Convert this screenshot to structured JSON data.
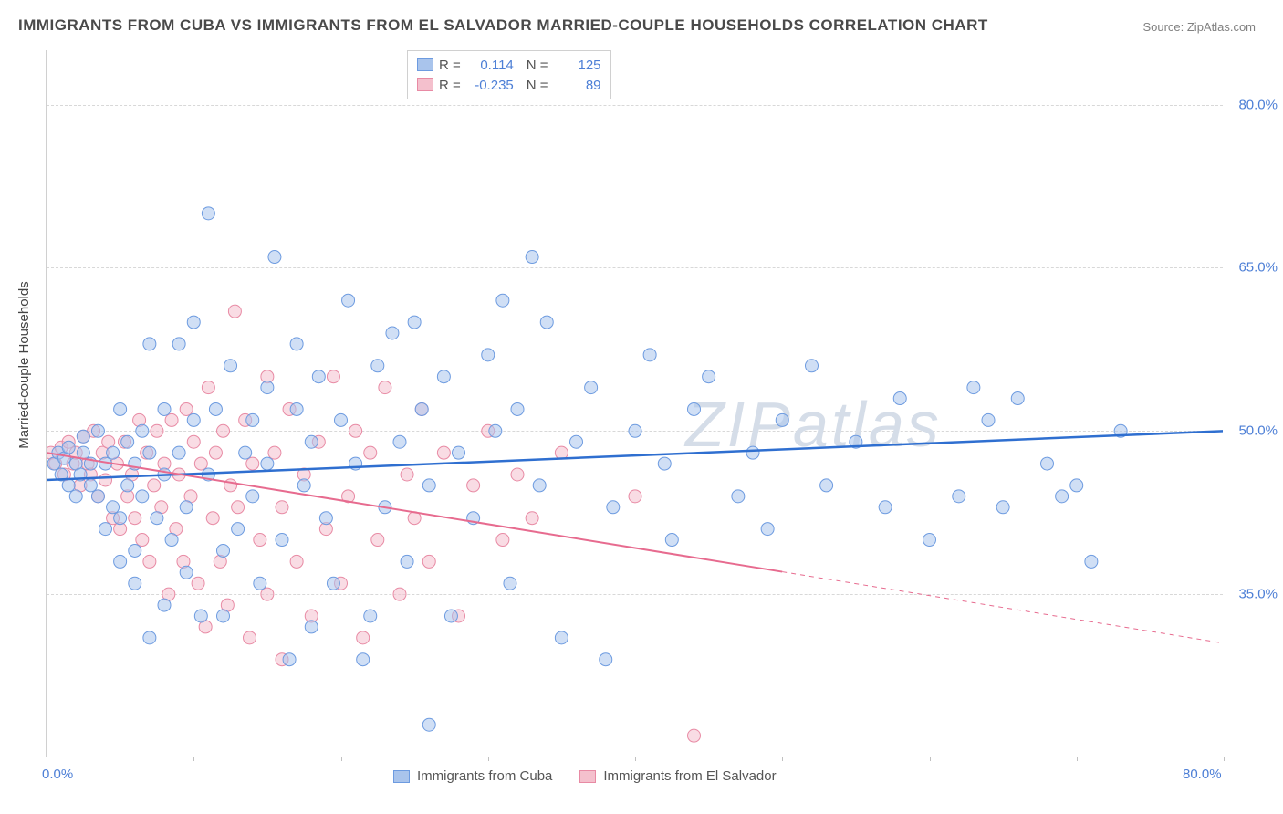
{
  "title": "IMMIGRANTS FROM CUBA VS IMMIGRANTS FROM EL SALVADOR MARRIED-COUPLE HOUSEHOLDS CORRELATION CHART",
  "source": "Source: ZipAtlas.com",
  "watermark": "ZIPatlas",
  "y_axis_title": "Married-couple Households",
  "chart": {
    "type": "scatter",
    "xlim": [
      0,
      80
    ],
    "ylim": [
      20,
      85
    ],
    "x_ticks": [
      0,
      10,
      20,
      30,
      40,
      50,
      60,
      70,
      80
    ],
    "x_tick_labels": {
      "0": "0.0%",
      "80": "80.0%"
    },
    "y_ticks": [
      35,
      50,
      65,
      80
    ],
    "y_tick_labels": {
      "35": "35.0%",
      "50": "50.0%",
      "65": "65.0%",
      "80": "80.0%"
    },
    "grid_color": "#d8d8d8",
    "background_color": "#ffffff",
    "axis_label_color": "#4d7fd6",
    "marker_radius": 7,
    "marker_opacity": 0.55,
    "series": [
      {
        "name": "Immigrants from Cuba",
        "color_fill": "#a9c4ec",
        "color_stroke": "#6d9be0",
        "trend_color": "#2f6fd0",
        "trend_width": 2.5,
        "R": "0.114",
        "N": "125",
        "trend": {
          "x1": 0,
          "y1": 45.5,
          "x2": 80,
          "y2": 50.0,
          "solid_until_x": 80
        },
        "points": [
          [
            0.5,
            47
          ],
          [
            0.8,
            48
          ],
          [
            1,
            46
          ],
          [
            1.2,
            47.5
          ],
          [
            1.5,
            45
          ],
          [
            1.5,
            48.5
          ],
          [
            2,
            47
          ],
          [
            2,
            44
          ],
          [
            2.3,
            46
          ],
          [
            2.5,
            48
          ],
          [
            2.5,
            49.5
          ],
          [
            3,
            45
          ],
          [
            3,
            47
          ],
          [
            3.5,
            44
          ],
          [
            3.5,
            50
          ],
          [
            4,
            41
          ],
          [
            4,
            47
          ],
          [
            4.5,
            43
          ],
          [
            4.5,
            48
          ],
          [
            5,
            42
          ],
          [
            5,
            38
          ],
          [
            5,
            52
          ],
          [
            5.5,
            45
          ],
          [
            5.5,
            49
          ],
          [
            6,
            39
          ],
          [
            6,
            47
          ],
          [
            6,
            36
          ],
          [
            6.5,
            50
          ],
          [
            6.5,
            44
          ],
          [
            7,
            31
          ],
          [
            7,
            48
          ],
          [
            7,
            58
          ],
          [
            7.5,
            42
          ],
          [
            8,
            34
          ],
          [
            8,
            46
          ],
          [
            8,
            52
          ],
          [
            8.5,
            40
          ],
          [
            9,
            48
          ],
          [
            9,
            58
          ],
          [
            9.5,
            43
          ],
          [
            9.5,
            37
          ],
          [
            10,
            51
          ],
          [
            10,
            60
          ],
          [
            10.5,
            33
          ],
          [
            11,
            46
          ],
          [
            11,
            70
          ],
          [
            11.5,
            52
          ],
          [
            12,
            39
          ],
          [
            12,
            33
          ],
          [
            12.5,
            56
          ],
          [
            13,
            41
          ],
          [
            13.5,
            48
          ],
          [
            14,
            51
          ],
          [
            14,
            44
          ],
          [
            14.5,
            36
          ],
          [
            15,
            54
          ],
          [
            15,
            47
          ],
          [
            15.5,
            66
          ],
          [
            16,
            40
          ],
          [
            16.5,
            29
          ],
          [
            17,
            52
          ],
          [
            17,
            58
          ],
          [
            17.5,
            45
          ],
          [
            18,
            49
          ],
          [
            18,
            32
          ],
          [
            18.5,
            55
          ],
          [
            19,
            42
          ],
          [
            19.5,
            36
          ],
          [
            20,
            51
          ],
          [
            20.5,
            62
          ],
          [
            21,
            47
          ],
          [
            21.5,
            29
          ],
          [
            22,
            33
          ],
          [
            22.5,
            56
          ],
          [
            23,
            43
          ],
          [
            23.5,
            59
          ],
          [
            24,
            49
          ],
          [
            24.5,
            38
          ],
          [
            25,
            60
          ],
          [
            25.5,
            52
          ],
          [
            26,
            23
          ],
          [
            26,
            45
          ],
          [
            27,
            55
          ],
          [
            27.5,
            33
          ],
          [
            28,
            48
          ],
          [
            29,
            42
          ],
          [
            30,
            57
          ],
          [
            30.5,
            50
          ],
          [
            31,
            62
          ],
          [
            31.5,
            36
          ],
          [
            32,
            52
          ],
          [
            33,
            66
          ],
          [
            33.5,
            45
          ],
          [
            34,
            60
          ],
          [
            35,
            31
          ],
          [
            36,
            49
          ],
          [
            37,
            54
          ],
          [
            38,
            29
          ],
          [
            38.5,
            43
          ],
          [
            40,
            50
          ],
          [
            41,
            57
          ],
          [
            42,
            47
          ],
          [
            42.5,
            40
          ],
          [
            44,
            52
          ],
          [
            45,
            55
          ],
          [
            47,
            44
          ],
          [
            48,
            48
          ],
          [
            49,
            41
          ],
          [
            50,
            51
          ],
          [
            52,
            56
          ],
          [
            53,
            45
          ],
          [
            55,
            49
          ],
          [
            57,
            43
          ],
          [
            58,
            53
          ],
          [
            60,
            40
          ],
          [
            62,
            44
          ],
          [
            63,
            54
          ],
          [
            64,
            51
          ],
          [
            65,
            43
          ],
          [
            66,
            53
          ],
          [
            68,
            47
          ],
          [
            69,
            44
          ],
          [
            70,
            45
          ],
          [
            71,
            38
          ],
          [
            73,
            50
          ]
        ]
      },
      {
        "name": "Immigrants from El Salvador",
        "color_fill": "#f4c0cd",
        "color_stroke": "#e88aa4",
        "trend_color": "#e76b8f",
        "trend_width": 2,
        "R": "-0.235",
        "N": "89",
        "trend": {
          "x1": 0,
          "y1": 48.0,
          "x2": 80,
          "y2": 30.5,
          "solid_until_x": 50
        },
        "points": [
          [
            0.3,
            48
          ],
          [
            0.6,
            47
          ],
          [
            1,
            48.5
          ],
          [
            1.2,
            46
          ],
          [
            1.5,
            49
          ],
          [
            1.8,
            47
          ],
          [
            2,
            48
          ],
          [
            2.3,
            45
          ],
          [
            2.5,
            49.5
          ],
          [
            2.8,
            47
          ],
          [
            3,
            46
          ],
          [
            3.2,
            50
          ],
          [
            3.5,
            44
          ],
          [
            3.8,
            48
          ],
          [
            4,
            45.5
          ],
          [
            4.2,
            49
          ],
          [
            4.5,
            42
          ],
          [
            4.8,
            47
          ],
          [
            5,
            41
          ],
          [
            5.3,
            49
          ],
          [
            5.5,
            44
          ],
          [
            5.8,
            46
          ],
          [
            6,
            42
          ],
          [
            6.3,
            51
          ],
          [
            6.5,
            40
          ],
          [
            6.8,
            48
          ],
          [
            7,
            38
          ],
          [
            7.3,
            45
          ],
          [
            7.5,
            50
          ],
          [
            7.8,
            43
          ],
          [
            8,
            47
          ],
          [
            8.3,
            35
          ],
          [
            8.5,
            51
          ],
          [
            8.8,
            41
          ],
          [
            9,
            46
          ],
          [
            9.3,
            38
          ],
          [
            9.5,
            52
          ],
          [
            9.8,
            44
          ],
          [
            10,
            49
          ],
          [
            10.3,
            36
          ],
          [
            10.5,
            47
          ],
          [
            10.8,
            32
          ],
          [
            11,
            54
          ],
          [
            11.3,
            42
          ],
          [
            11.5,
            48
          ],
          [
            11.8,
            38
          ],
          [
            12,
            50
          ],
          [
            12.3,
            34
          ],
          [
            12.5,
            45
          ],
          [
            12.8,
            61
          ],
          [
            13,
            43
          ],
          [
            13.5,
            51
          ],
          [
            13.8,
            31
          ],
          [
            14,
            47
          ],
          [
            14.5,
            40
          ],
          [
            15,
            55
          ],
          [
            15,
            35
          ],
          [
            15.5,
            48
          ],
          [
            16,
            29
          ],
          [
            16,
            43
          ],
          [
            16.5,
            52
          ],
          [
            17,
            38
          ],
          [
            17.5,
            46
          ],
          [
            18,
            33
          ],
          [
            18.5,
            49
          ],
          [
            19,
            41
          ],
          [
            19.5,
            55
          ],
          [
            20,
            36
          ],
          [
            20.5,
            44
          ],
          [
            21,
            50
          ],
          [
            21.5,
            31
          ],
          [
            22,
            48
          ],
          [
            22.5,
            40
          ],
          [
            23,
            54
          ],
          [
            24,
            35
          ],
          [
            24.5,
            46
          ],
          [
            25,
            42
          ],
          [
            25.5,
            52
          ],
          [
            26,
            38
          ],
          [
            27,
            48
          ],
          [
            28,
            33
          ],
          [
            29,
            45
          ],
          [
            30,
            50
          ],
          [
            31,
            40
          ],
          [
            32,
            46
          ],
          [
            33,
            42
          ],
          [
            35,
            48
          ],
          [
            40,
            44
          ],
          [
            44,
            22
          ]
        ]
      }
    ]
  },
  "legend_bottom": [
    {
      "label": "Immigrants from Cuba",
      "fill": "#a9c4ec",
      "stroke": "#6d9be0"
    },
    {
      "label": "Immigrants from El Salvador",
      "fill": "#f4c0cd",
      "stroke": "#e88aa4"
    }
  ]
}
